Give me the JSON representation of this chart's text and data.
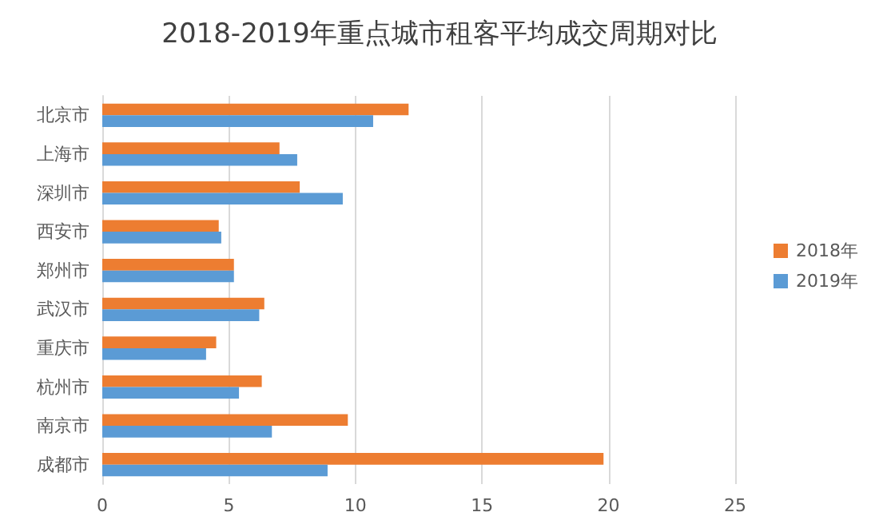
{
  "chart_data": {
    "type": "bar",
    "orientation": "horizontal",
    "title": "2018-2019年重点城市租客平均成交周期对比",
    "categories": [
      "北京市",
      "上海市",
      "深圳市",
      "西安市",
      "郑州市",
      "武汉市",
      "重庆市",
      "杭州市",
      "南京市",
      "成都市"
    ],
    "series": [
      {
        "name": "2018年",
        "color": "#ed7d31",
        "values": [
          12.1,
          7.0,
          7.8,
          4.6,
          5.2,
          6.4,
          4.5,
          6.3,
          9.7,
          19.8
        ]
      },
      {
        "name": "2019年",
        "color": "#5b9bd5",
        "values": [
          10.7,
          7.7,
          9.5,
          4.7,
          5.2,
          6.2,
          4.1,
          5.4,
          6.7,
          8.9
        ]
      }
    ],
    "xlim": [
      0,
      25
    ],
    "xticks": [
      0,
      5,
      10,
      15,
      20,
      25
    ],
    "grid": "x",
    "legend": "right"
  }
}
